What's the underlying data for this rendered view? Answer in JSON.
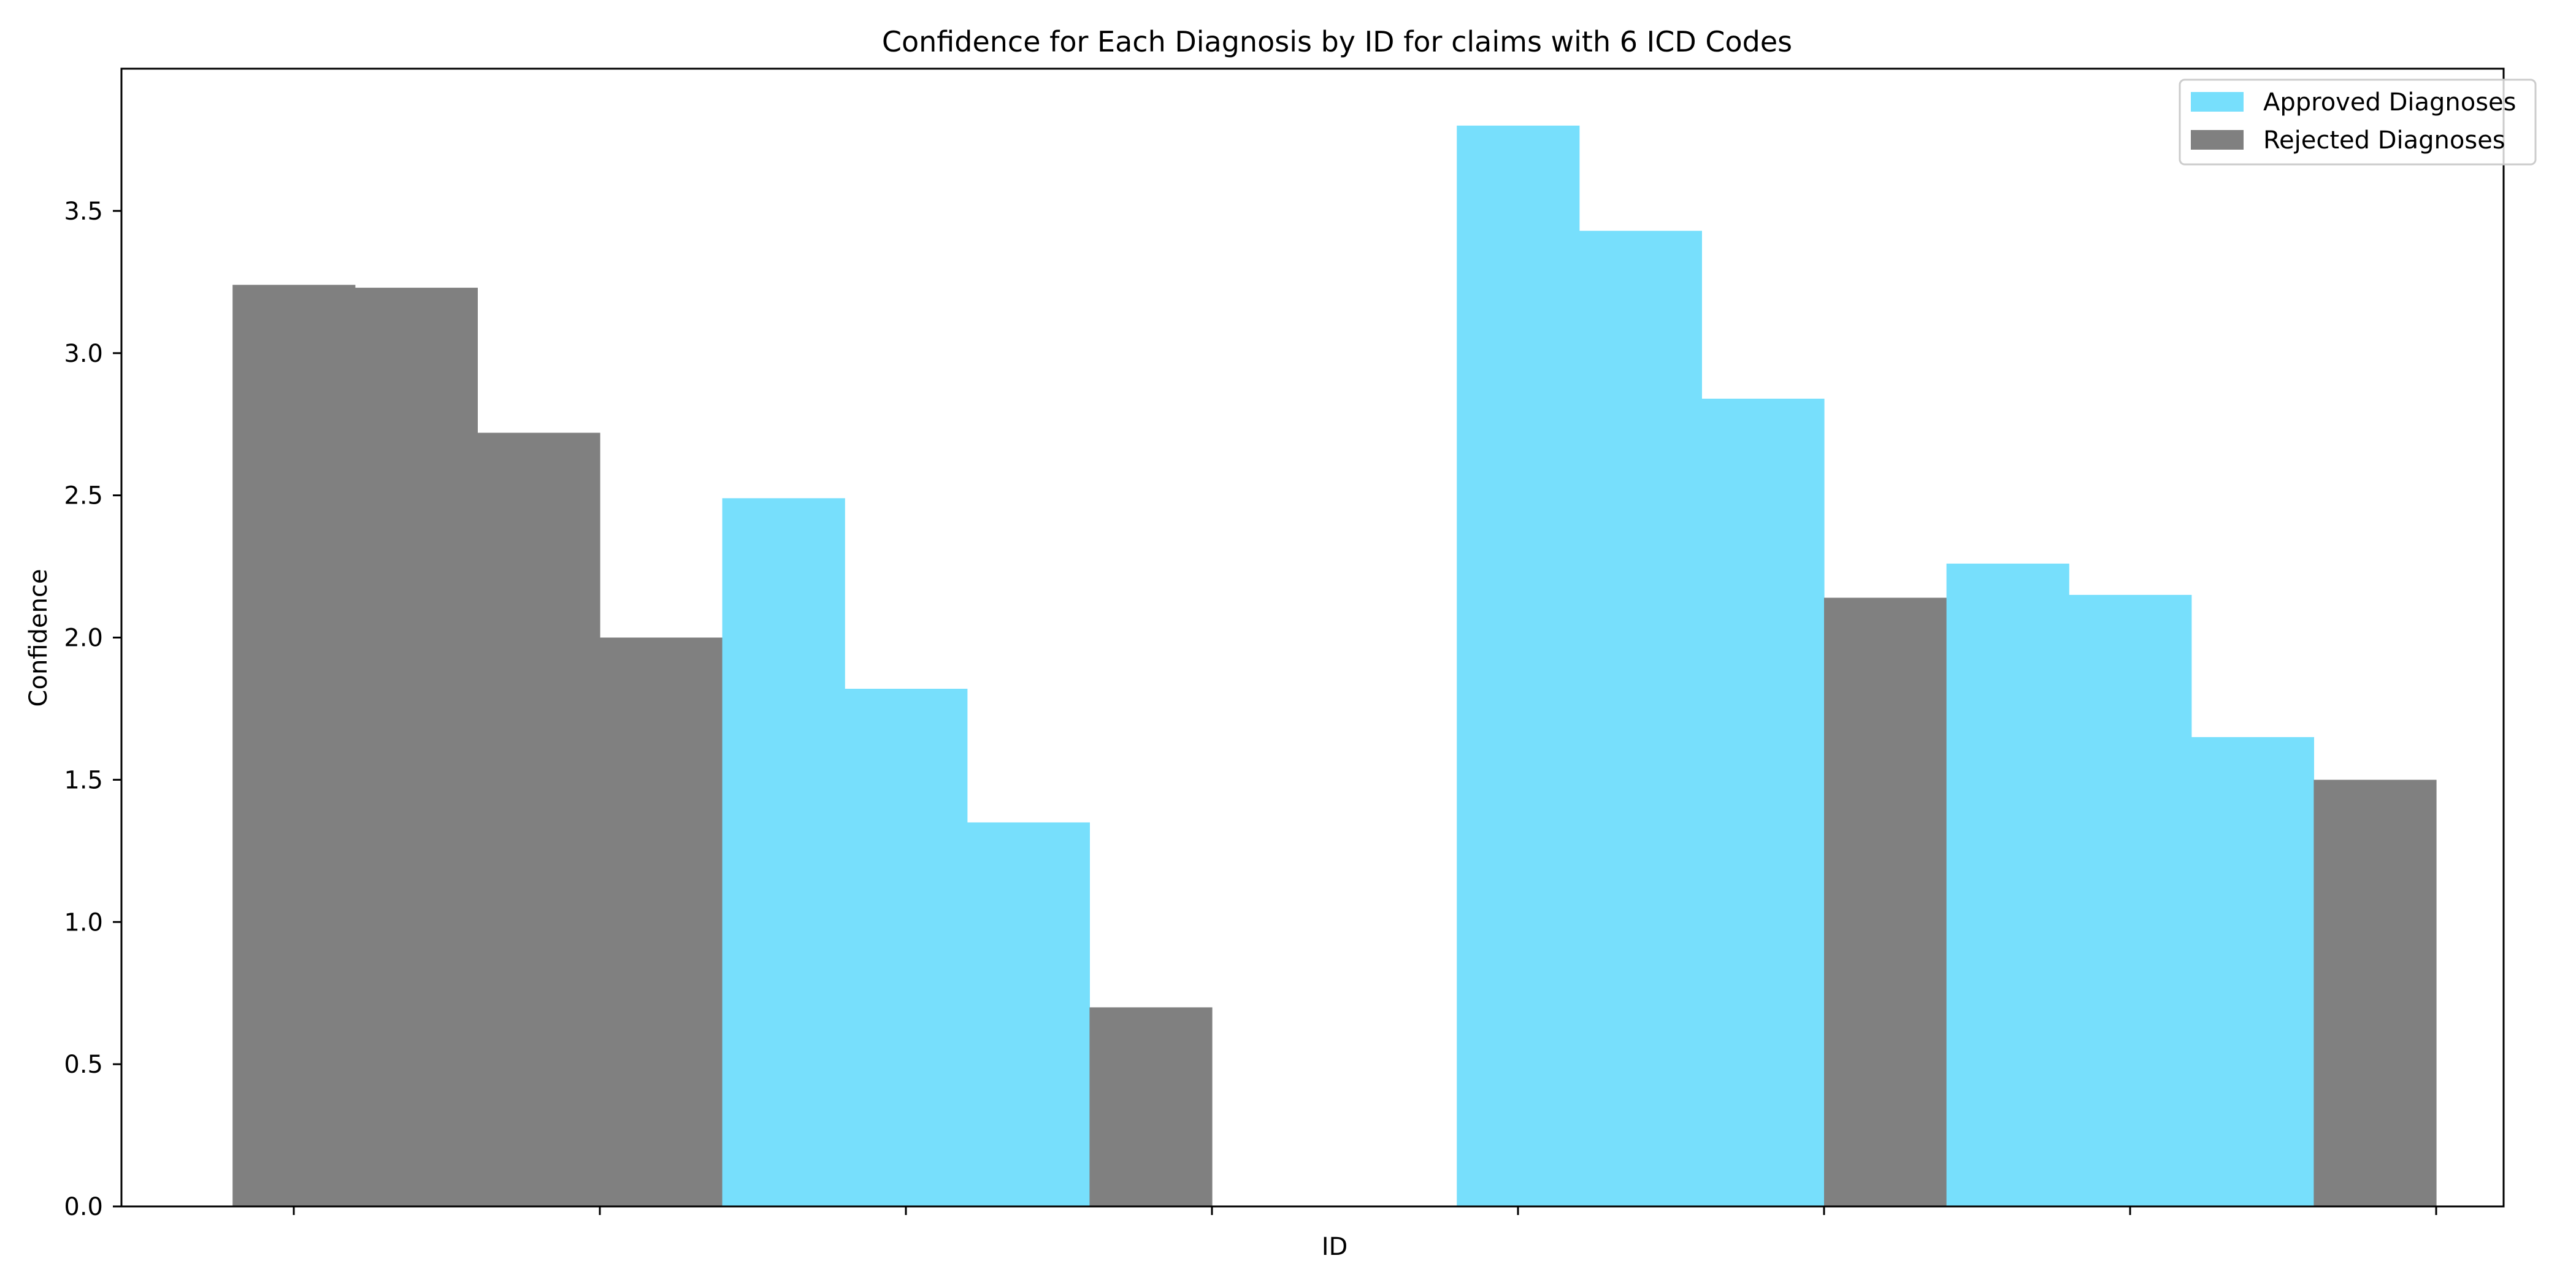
{
  "chart_data": {
    "type": "bar",
    "title": "Confidence for Each Diagnosis by ID for claims with 6 ICD Codes",
    "xlabel": "ID",
    "ylabel": "Confidence",
    "ylim": [
      0,
      4.0
    ],
    "yticks": [
      "0.0",
      "0.5",
      "1.0",
      "1.5",
      "2.0",
      "2.5",
      "3.0",
      "3.5"
    ],
    "grid": false,
    "legend_position": "top-right",
    "colors": {
      "approved": "#77dffc",
      "rejected": "#808080"
    },
    "series": [
      {
        "name": "Approved Diagnoses",
        "status_key": "approved"
      },
      {
        "name": "Rejected Diagnoses",
        "status_key": "rejected"
      }
    ],
    "bars": [
      {
        "status": "rejected",
        "value": 3.24
      },
      {
        "status": "rejected",
        "value": 3.23
      },
      {
        "status": "rejected",
        "value": 2.72
      },
      {
        "status": "rejected",
        "value": 2.0
      },
      {
        "status": "approved",
        "value": 2.49
      },
      {
        "status": "approved",
        "value": 1.82
      },
      {
        "status": "approved",
        "value": 1.35
      },
      {
        "status": "rejected",
        "value": 0.7
      },
      {
        "status": "none",
        "value": 0
      },
      {
        "status": "none",
        "value": 0
      },
      {
        "status": "approved",
        "value": 3.8
      },
      {
        "status": "approved",
        "value": 3.43
      },
      {
        "status": "approved",
        "value": 2.84
      },
      {
        "status": "rejected",
        "value": 2.14
      },
      {
        "status": "approved",
        "value": 2.26
      },
      {
        "status": "approved",
        "value": 2.15
      },
      {
        "status": "approved",
        "value": 1.65
      },
      {
        "status": "rejected",
        "value": 1.5
      }
    ],
    "x_tick_count": 8
  }
}
